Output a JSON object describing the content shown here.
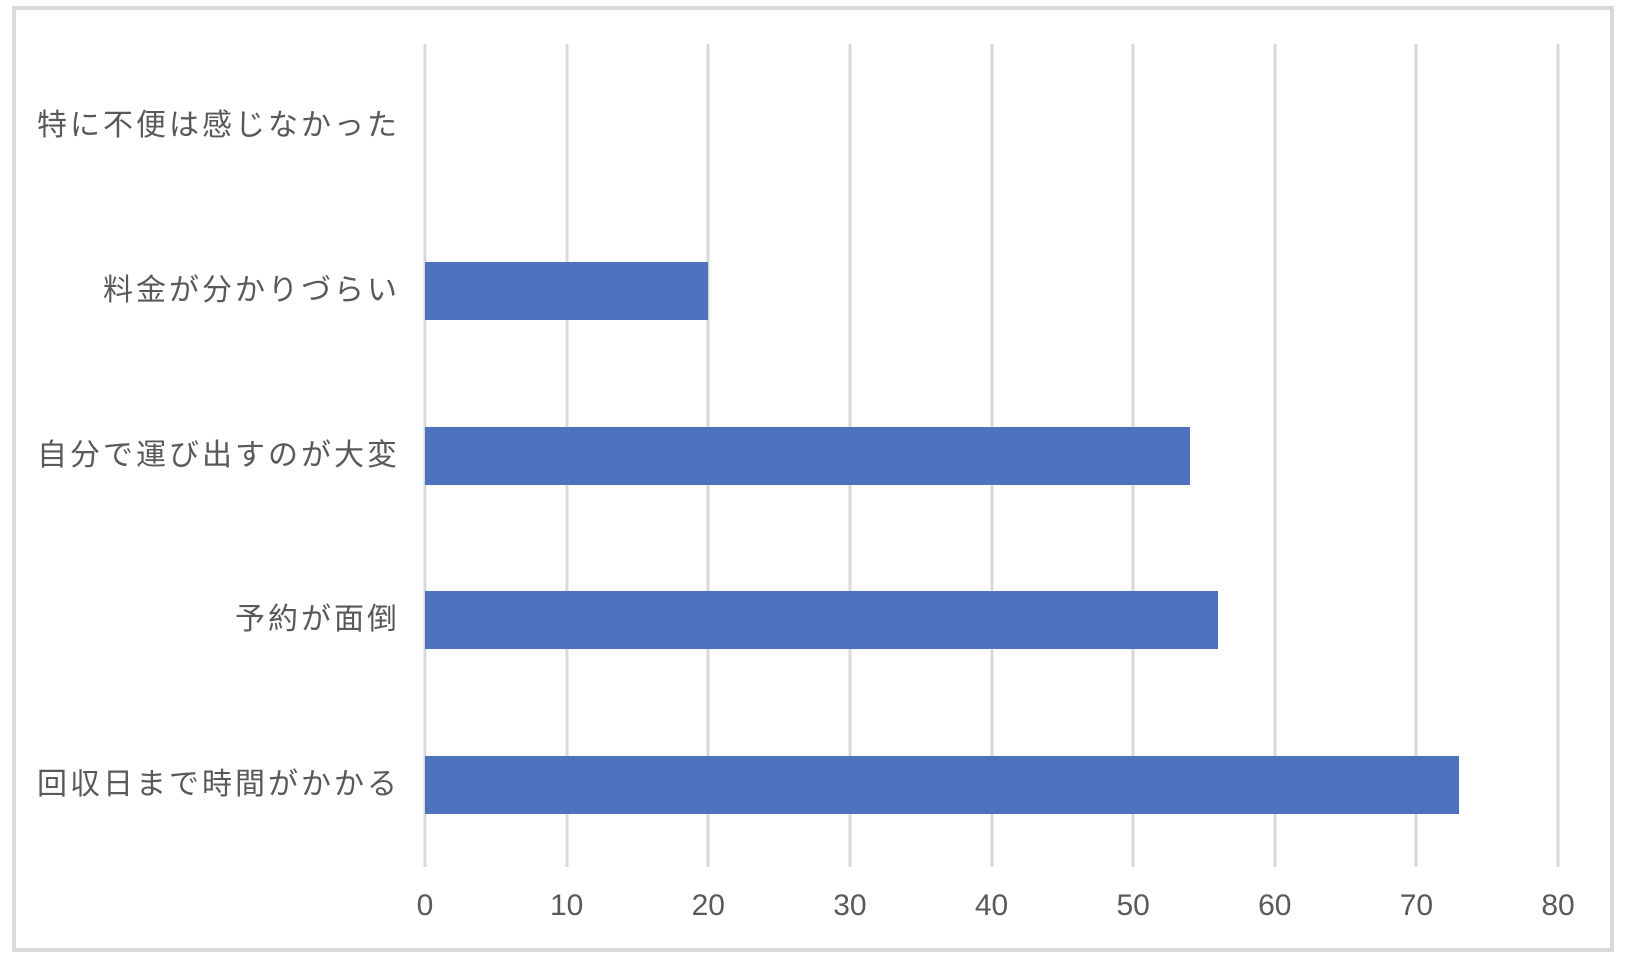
{
  "chart_data": {
    "type": "bar",
    "orientation": "horizontal",
    "title": "",
    "xlabel": "",
    "ylabel": "",
    "categories": [
      "特に不便は感じなかった",
      "料金が分かりづらい",
      "自分で運び出すのが大変",
      "予約が面倒",
      "回収日まで時間がかかる"
    ],
    "values": [
      0,
      20,
      54,
      56,
      73
    ],
    "xlim": [
      0,
      80
    ],
    "xticks": [
      0,
      10,
      20,
      30,
      40,
      50,
      60,
      70,
      80
    ],
    "grid": "vertical-major-gridlines",
    "legend_position": "none"
  },
  "colors": {
    "bar": "#4F72BE",
    "gridline": "#D9D9D9",
    "frame_border": "#D9D9D9",
    "axis_text": "#595959",
    "background": "#FFFFFF"
  }
}
